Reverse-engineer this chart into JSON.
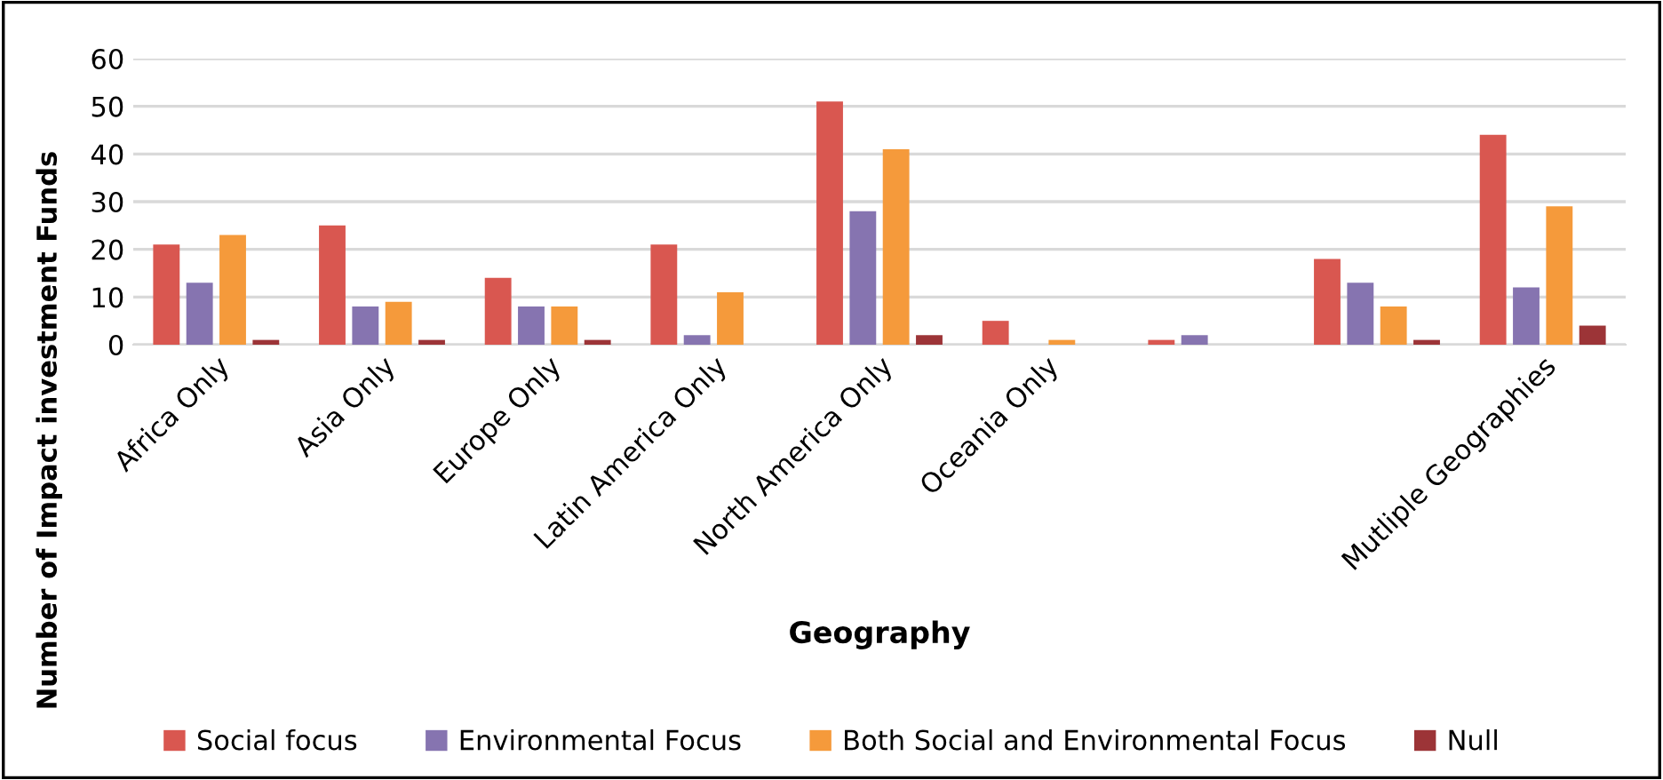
{
  "chart_data": {
    "type": "bar",
    "xlabel": "Geography",
    "ylabel": "Number of Impact investment Funds",
    "categories": [
      "Africa Only",
      "Asia Only",
      "Europe Only",
      "Latin America Only",
      "North America Only",
      "Oceania Only",
      null,
      null,
      "Mutliple Geographies"
    ],
    "series": [
      {
        "name": "Social focus",
        "color": "#d95750",
        "values": [
          21,
          25,
          14,
          21,
          51,
          5,
          1,
          18,
          44
        ]
      },
      {
        "name": "Environmental Focus",
        "color": "#8674b0",
        "values": [
          13,
          8,
          8,
          2,
          28,
          null,
          2,
          13,
          12
        ]
      },
      {
        "name": "Both Social and Environmental Focus",
        "color": "#f59a3b",
        "values": [
          23,
          9,
          8,
          11,
          41,
          1,
          null,
          8,
          29
        ]
      },
      {
        "name": "Null",
        "color": "#9c3437",
        "values": [
          1,
          1,
          1,
          null,
          2,
          null,
          null,
          1,
          4
        ]
      }
    ],
    "ylim": [
      0,
      60
    ],
    "yticks": [
      0,
      10,
      20,
      30,
      40,
      50,
      60
    ],
    "grid": "y",
    "legend": "bottom"
  }
}
